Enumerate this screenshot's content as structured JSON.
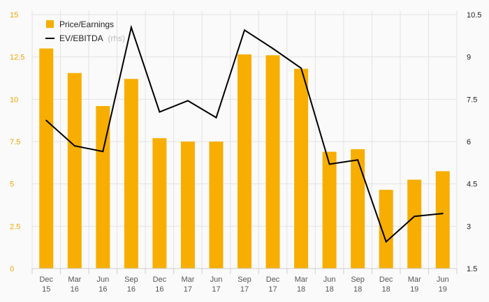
{
  "chart_data": {
    "type": "bar",
    "title": "",
    "categories": [
      [
        "Dec",
        "15"
      ],
      [
        "Mar",
        "16"
      ],
      [
        "Jun",
        "16"
      ],
      [
        "Sep",
        "16"
      ],
      [
        "Dec",
        "16"
      ],
      [
        "Mar",
        "17"
      ],
      [
        "Jun",
        "17"
      ],
      [
        "Sep",
        "17"
      ],
      [
        "Dec",
        "17"
      ],
      [
        "Mar",
        "18"
      ],
      [
        "Jun",
        "18"
      ],
      [
        "Sep",
        "18"
      ],
      [
        "Dec",
        "18"
      ],
      [
        "Mar",
        "19"
      ],
      [
        "Jun",
        "19"
      ]
    ],
    "series": [
      {
        "name": "Price/Earnings",
        "type": "bar",
        "axis": "left",
        "color": "#f7ae00",
        "values": [
          13.0,
          11.55,
          9.6,
          11.2,
          7.7,
          7.5,
          7.5,
          12.65,
          12.6,
          11.8,
          6.9,
          7.05,
          4.65,
          5.25,
          5.75
        ]
      },
      {
        "name": "EV/EBITDA",
        "name_suffix": "(rhs)",
        "type": "line",
        "axis": "right",
        "color": "#000000",
        "values": [
          6.75,
          5.85,
          5.65,
          10.05,
          7.05,
          7.45,
          6.85,
          9.95,
          9.3,
          8.6,
          5.2,
          5.35,
          2.45,
          3.35,
          3.45
        ]
      }
    ],
    "y_left": {
      "ylim": [
        0,
        15
      ],
      "ticks": [
        "0",
        "2.5",
        "5",
        "7.5",
        "10",
        "12.5",
        "15"
      ],
      "color": "#f0a400"
    },
    "y_right": {
      "ylim": [
        1.5,
        10.5
      ],
      "ticks": [
        "1.5",
        "3",
        "4.5",
        "6",
        "7.5",
        "9",
        "10.5"
      ],
      "color": "#222222"
    },
    "grid": true,
    "legend": "top-left",
    "xlabel": "",
    "ylabel": ""
  }
}
